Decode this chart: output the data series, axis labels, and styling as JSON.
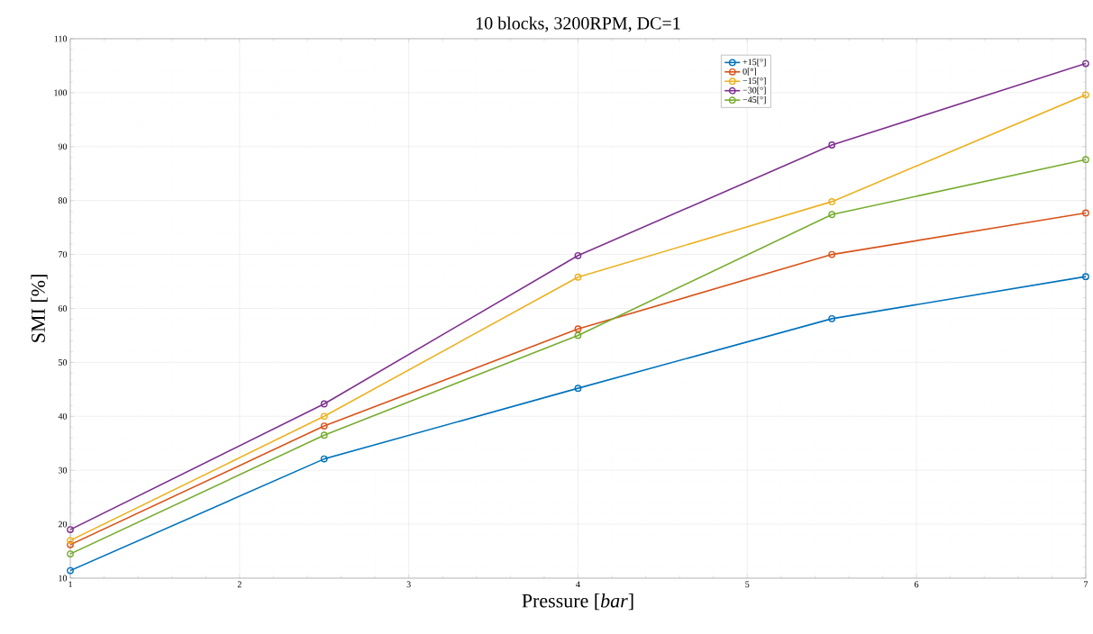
{
  "chart_data": {
    "type": "line",
    "title": "10 blocks, 3200RPM, DC=1",
    "xlabel": "Pressure [*bar*]",
    "ylabel": "SMI [%]",
    "x": [
      1,
      2.5,
      4,
      5.5,
      7
    ],
    "series": [
      {
        "name": "+15[°]",
        "color": "#0072bd",
        "values": [
          11.4,
          32.1,
          45.2,
          58.1,
          65.9
        ]
      },
      {
        "name": "0[°]",
        "color": "#d95319",
        "values": [
          16.2,
          38.2,
          56.2,
          70.0,
          77.7
        ]
      },
      {
        "name": "−15[°]",
        "color": "#edb120",
        "values": [
          17.0,
          40.0,
          65.8,
          79.8,
          99.6
        ]
      },
      {
        "name": "−30[°]",
        "color": "#7e2f8e",
        "values": [
          19.0,
          42.3,
          69.8,
          90.3,
          105.4
        ]
      },
      {
        "name": "−45[°]",
        "color": "#77ac30",
        "values": [
          14.5,
          36.5,
          55.0,
          77.4,
          87.6
        ]
      }
    ],
    "xlim": [
      1,
      7
    ],
    "xticks": [
      1,
      2,
      3,
      4,
      5,
      6,
      7
    ],
    "ylim": [
      10,
      110
    ],
    "yticks": [
      10,
      20,
      30,
      40,
      50,
      60,
      70,
      80,
      90,
      100,
      110
    ],
    "grid": true,
    "legend": "top right",
    "marker": "circle",
    "line_style": "solid"
  }
}
